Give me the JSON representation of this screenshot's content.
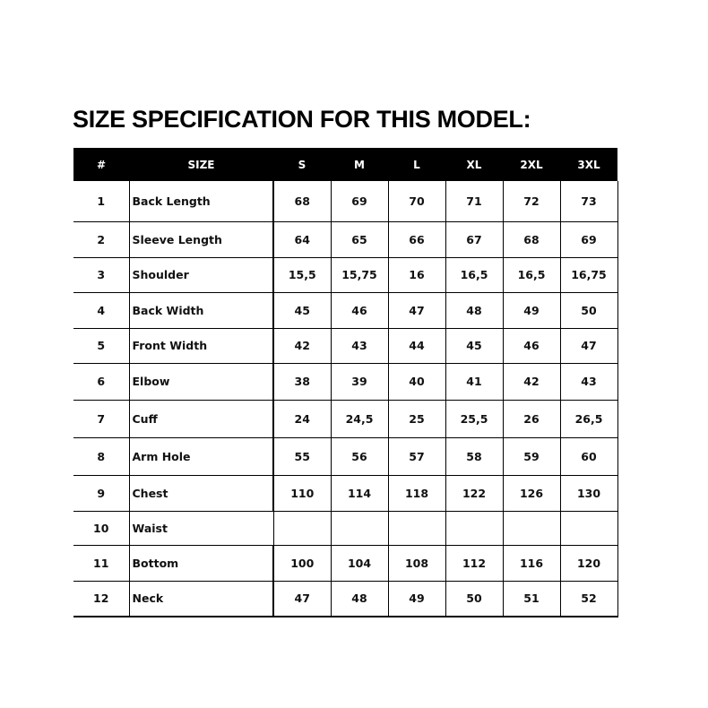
{
  "title": "SIZE SPECIFICATION FOR THIS MODEL:",
  "table": {
    "headers": [
      "#",
      "SIZE",
      "S",
      "M",
      "L",
      "XL",
      "2XL",
      "3XL"
    ],
    "rows": [
      {
        "n": "1",
        "name": "Back Length",
        "values": [
          "68",
          "69",
          "70",
          "71",
          "72",
          "73"
        ]
      },
      {
        "n": "2",
        "name": "Sleeve Length",
        "values": [
          "64",
          "65",
          "66",
          "67",
          "68",
          "69"
        ]
      },
      {
        "n": "3",
        "name": "Shoulder",
        "values": [
          "15,5",
          "15,75",
          "16",
          "16,5",
          "16,5",
          "16,75"
        ]
      },
      {
        "n": "4",
        "name": "Back Width",
        "values": [
          "45",
          "46",
          "47",
          "48",
          "49",
          "50"
        ]
      },
      {
        "n": "5",
        "name": "Front Width",
        "values": [
          "42",
          "43",
          "44",
          "45",
          "46",
          "47"
        ]
      },
      {
        "n": "6",
        "name": "Elbow",
        "values": [
          "38",
          "39",
          "40",
          "41",
          "42",
          "43"
        ]
      },
      {
        "n": "7",
        "name": "Cuff",
        "values": [
          "24",
          "24,5",
          "25",
          "25,5",
          "26",
          "26,5"
        ]
      },
      {
        "n": "8",
        "name": "Arm Hole",
        "values": [
          "55",
          "56",
          "57",
          "58",
          "59",
          "60"
        ]
      },
      {
        "n": "9",
        "name": "Chest",
        "values": [
          "110",
          "114",
          "118",
          "122",
          "126",
          "130"
        ]
      },
      {
        "n": "10",
        "name": "Waist",
        "values": [
          "",
          "",
          "",
          "",
          "",
          ""
        ]
      },
      {
        "n": "11",
        "name": "Bottom",
        "values": [
          "100",
          "104",
          "108",
          "112",
          "116",
          "120"
        ]
      },
      {
        "n": "12",
        "name": "Neck",
        "values": [
          "47",
          "48",
          "49",
          "50",
          "51",
          "52"
        ]
      }
    ]
  }
}
